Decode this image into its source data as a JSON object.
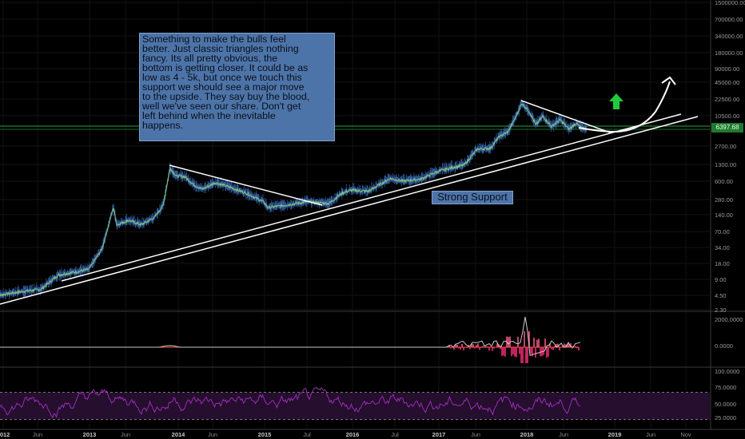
{
  "annotation_text": "Something to make the bulls feel\nbetter.  Just classic triangles nothing\nfancy.   Its all pretty obvious, the\nbottom is getting closer.  It could be as\nlow as 4 - 5k, but once we touch this\nsupport we should see a major move\nto the upside.  They say buy the blood,\nwell we've seen our share.  Don't get\nleft behind when the inevitable\nhappens.",
  "support_label": "Strong Support",
  "price_marker": "6397.68",
  "colors": {
    "background": "#000000",
    "price_line": "#7fbf7f",
    "wick": "#3a68b5",
    "trendline": "#ffffff",
    "support_line": "#2e9e3a",
    "up_arrow": "#22c93a",
    "note_fill": "#4d74a8",
    "osc_up": "#c8c8c8",
    "osc_down": "#ff2d7a",
    "rsi_line": "#a030c0",
    "rsi_band": "#2a0f33"
  },
  "chart_data": [
    {
      "type": "line",
      "scale": "log",
      "x_ticks": [
        "2012",
        "Jun",
        "2013",
        "Jun",
        "2014",
        "Jun",
        "2015",
        "Jul",
        "2016",
        "Jul",
        "2017",
        "Jun",
        "2018",
        "Jun",
        "2019",
        "Jun",
        "Nov"
      ],
      "y_ticks": [
        "1500000.00",
        "700000.00",
        "340000.00",
        "180000.00",
        "90000.00",
        "45000.00",
        "22500.00",
        "10500.00",
        "2700.00",
        "1300.00",
        "600.00",
        "280.00",
        "140.00",
        "70.00",
        "34.00",
        "18.00",
        "9.00",
        "4.50",
        "2.30"
      ],
      "ylim": [
        2.3,
        1500000
      ],
      "series": [
        {
          "values": [
            {
              "x": 2011.92,
              "y": 4.2
            },
            {
              "x": 2012.2,
              "y": 5.0
            },
            {
              "x": 2012.45,
              "y": 5.6
            },
            {
              "x": 2012.65,
              "y": 10.5
            },
            {
              "x": 2012.85,
              "y": 12.0
            },
            {
              "x": 2013.0,
              "y": 13.5
            },
            {
              "x": 2013.15,
              "y": 33
            },
            {
              "x": 2013.28,
              "y": 200
            },
            {
              "x": 2013.32,
              "y": 95
            },
            {
              "x": 2013.45,
              "y": 115
            },
            {
              "x": 2013.6,
              "y": 95
            },
            {
              "x": 2013.75,
              "y": 130
            },
            {
              "x": 2013.85,
              "y": 220
            },
            {
              "x": 2013.93,
              "y": 1130
            },
            {
              "x": 2014.0,
              "y": 800
            },
            {
              "x": 2014.1,
              "y": 780
            },
            {
              "x": 2014.2,
              "y": 550
            },
            {
              "x": 2014.3,
              "y": 450
            },
            {
              "x": 2014.45,
              "y": 600
            },
            {
              "x": 2014.6,
              "y": 500
            },
            {
              "x": 2014.8,
              "y": 380
            },
            {
              "x": 2015.0,
              "y": 260
            },
            {
              "x": 2015.05,
              "y": 200
            },
            {
              "x": 2015.3,
              "y": 230
            },
            {
              "x": 2015.5,
              "y": 260
            },
            {
              "x": 2015.75,
              "y": 240
            },
            {
              "x": 2015.9,
              "y": 380
            },
            {
              "x": 2016.0,
              "y": 430
            },
            {
              "x": 2016.2,
              "y": 410
            },
            {
              "x": 2016.45,
              "y": 720
            },
            {
              "x": 2016.6,
              "y": 640
            },
            {
              "x": 2016.8,
              "y": 700
            },
            {
              "x": 2017.0,
              "y": 980
            },
            {
              "x": 2017.15,
              "y": 1150
            },
            {
              "x": 2017.3,
              "y": 1300
            },
            {
              "x": 2017.45,
              "y": 2600
            },
            {
              "x": 2017.6,
              "y": 2700
            },
            {
              "x": 2017.7,
              "y": 4500
            },
            {
              "x": 2017.8,
              "y": 5500
            },
            {
              "x": 2017.88,
              "y": 9800
            },
            {
              "x": 2017.96,
              "y": 19500
            },
            {
              "x": 2018.05,
              "y": 13000
            },
            {
              "x": 2018.12,
              "y": 7500
            },
            {
              "x": 2018.2,
              "y": 11000
            },
            {
              "x": 2018.3,
              "y": 7000
            },
            {
              "x": 2018.4,
              "y": 9400
            },
            {
              "x": 2018.5,
              "y": 6200
            },
            {
              "x": 2018.58,
              "y": 8100
            },
            {
              "x": 2018.65,
              "y": 6400
            },
            {
              "x": 2018.7,
              "y": 6397.68
            }
          ]
        }
      ],
      "annotations": [
        "Something to make the bulls feel better...",
        "Strong Support"
      ]
    },
    {
      "type": "line",
      "y_ticks": [
        "2000.0000",
        "0.0000"
      ]
    },
    {
      "type": "line",
      "y_ticks": [
        "100.0000",
        "75.0000",
        "50.0000",
        "25.0000"
      ],
      "ylim": [
        20,
        100
      ]
    }
  ]
}
